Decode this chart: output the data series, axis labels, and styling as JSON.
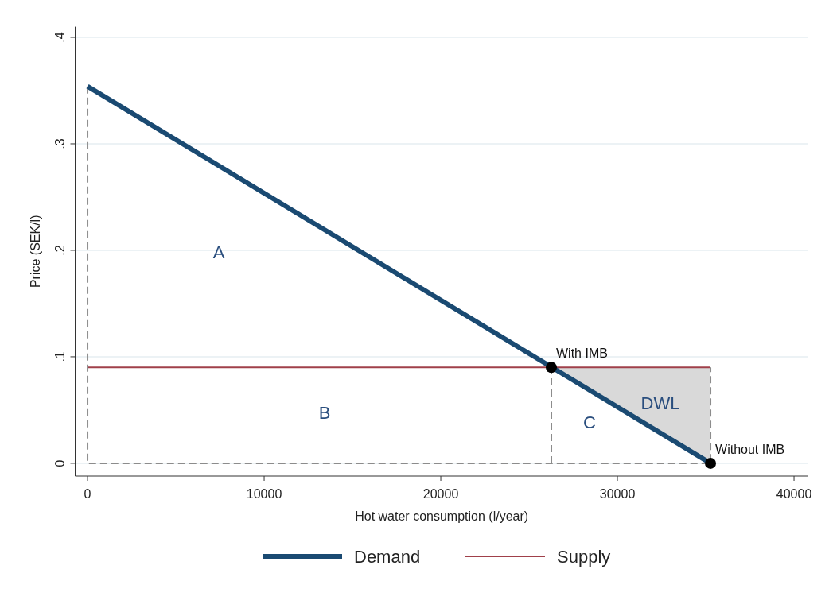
{
  "chart_data": {
    "type": "line",
    "xlabel": "Hot water consumption (l/year)",
    "ylabel": "Price (SEK/l)",
    "xlim": [
      -700,
      40800
    ],
    "xticks": [
      0,
      10000,
      20000,
      30000,
      40000
    ],
    "ylim": [
      -0.012,
      0.41
    ],
    "yticks": [
      {
        "value": 0,
        "label": "0"
      },
      {
        "value": 0.1,
        "label": ".1"
      },
      {
        "value": 0.2,
        "label": ".2"
      },
      {
        "value": 0.3,
        "label": ".3"
      },
      {
        "value": 0.4,
        "label": ".4"
      }
    ],
    "grid": "y",
    "legend": "bottom",
    "series": [
      {
        "line_style": "dashed",
        "color": "#8c8c8c",
        "x": [
          0,
          0,
          35270,
          35270
        ],
        "values": [
          0.354,
          0,
          0,
          0.09
        ]
      },
      {
        "line_style": "dashed",
        "color": "#8c8c8c",
        "x": [
          26260,
          26260
        ],
        "values": [
          0,
          0.09
        ]
      },
      {
        "name": "Supply",
        "color": "#a0404a",
        "x": [
          0,
          35270
        ],
        "values": [
          0.09,
          0.09
        ]
      },
      {
        "name": "Demand",
        "color": "#1a4a72",
        "x": [
          0,
          35270
        ],
        "values": [
          0.354,
          0
        ]
      },
      {
        "type": "scatter",
        "marker": "circle",
        "color": "#000000",
        "x": [
          26260,
          35270
        ],
        "values": [
          0.09,
          0
        ]
      }
    ],
    "annotations": [
      "A",
      "B",
      "C",
      "DWL",
      {
        "text": "With IMB",
        "x": 26260,
        "y": 0.09
      },
      {
        "text": "Without IMB",
        "x": 35270,
        "y": 0
      }
    ]
  }
}
